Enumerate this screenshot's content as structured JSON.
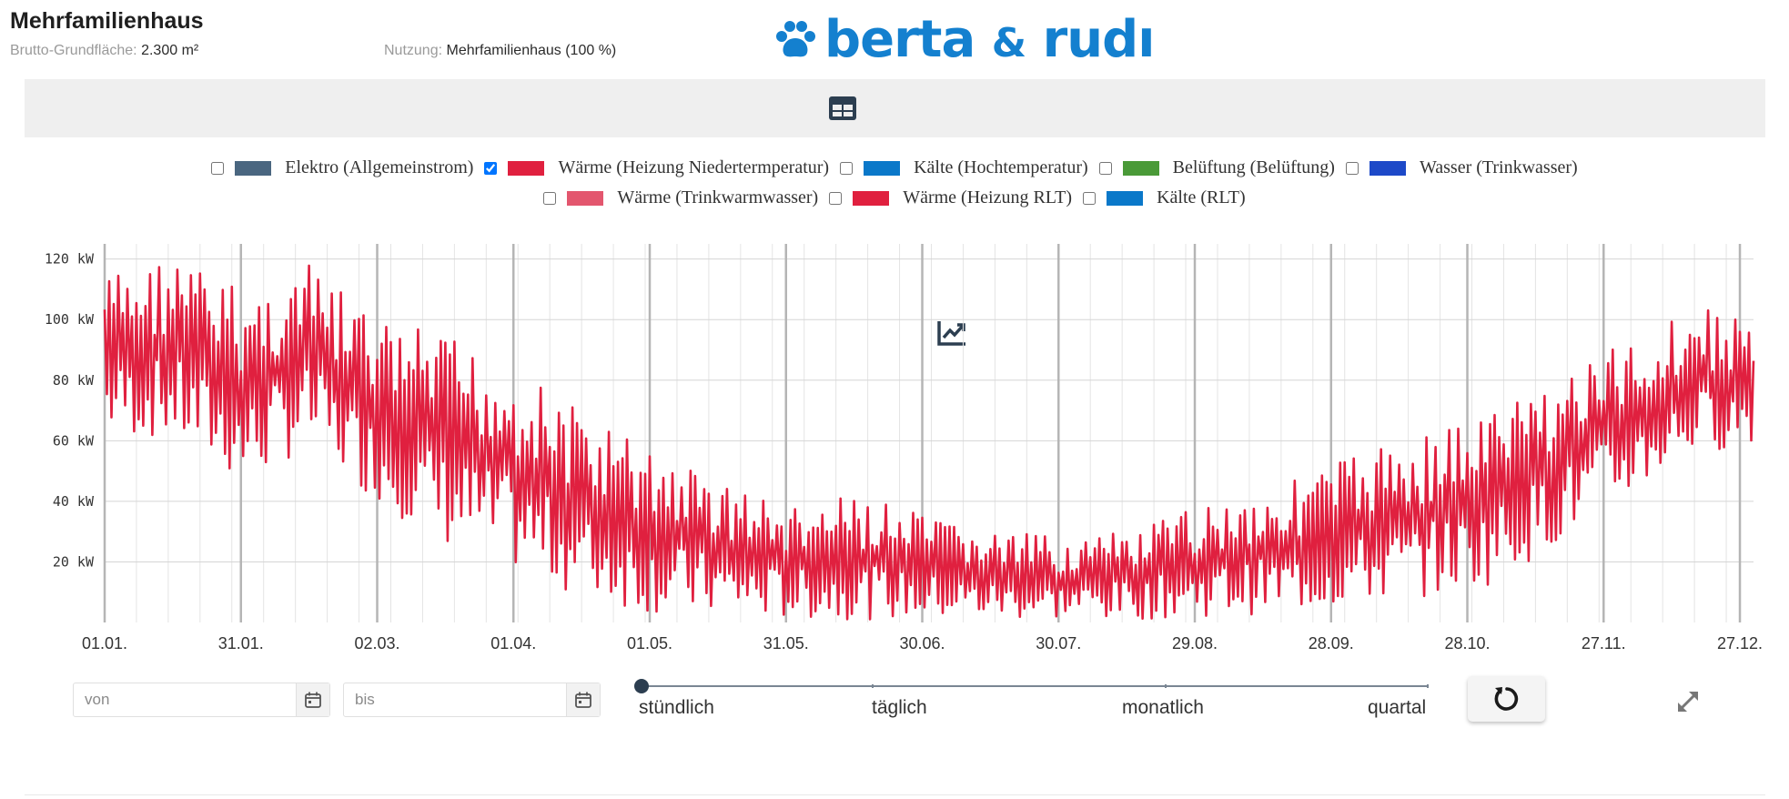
{
  "header": {
    "title": "Mehrfamilienhaus",
    "area_label": "Brutto-Grundfläche:",
    "area_value": "2.300 m²",
    "usage_label": "Nutzung:",
    "usage_value": "Mehrfamilienhaus (100 %)"
  },
  "logo": {
    "text_left": "berta",
    "amp": "&",
    "text_right": "rudı",
    "color": "#1480cf"
  },
  "toolbar": {
    "table_icon": "table-icon",
    "chart_icon": "chart-line-icon",
    "active_color": "#2c3e50"
  },
  "legend": {
    "row1": [
      {
        "label": "Elektro (Allgemeinstrom)",
        "color": "#4a6680",
        "checked": false
      },
      {
        "label": "Wärme (Heizung Niedertermperatur)",
        "color": "#e0203f",
        "checked": true
      },
      {
        "label": "Kälte (Hochtemperatur)",
        "color": "#0a78c9",
        "checked": false
      },
      {
        "label": "Belüftung (Belüftung)",
        "color": "#4a9a38",
        "checked": false
      },
      {
        "label": "Wasser (Trinkwasser)",
        "color": "#1d49c8",
        "checked": false
      }
    ],
    "row2": [
      {
        "label": "Wärme (Trinkwarmwasser)",
        "color": "#e3566e",
        "checked": false
      },
      {
        "label": "Wärme (Heizung RLT)",
        "color": "#e0203f",
        "checked": false
      },
      {
        "label": "Kälte (RLT)",
        "color": "#0a78c9",
        "checked": false
      }
    ]
  },
  "chart_data": {
    "type": "line",
    "series": [
      {
        "name": "Wärme (Heizung Niedertermperatur)",
        "color": "#e0203f",
        "x_unit": "day_of_year",
        "monthly_envelope": [
          [
            0,
            115,
            62
          ],
          [
            15,
            122,
            60
          ],
          [
            31,
            110,
            45
          ],
          [
            45,
            118,
            58
          ],
          [
            60,
            100,
            40
          ],
          [
            75,
            95,
            25
          ],
          [
            90,
            85,
            18
          ],
          [
            105,
            70,
            8
          ],
          [
            120,
            58,
            3
          ],
          [
            135,
            48,
            2
          ],
          [
            151,
            38,
            1
          ],
          [
            166,
            42,
            1
          ],
          [
            181,
            35,
            1
          ],
          [
            196,
            30,
            1
          ],
          [
            212,
            28,
            1
          ],
          [
            227,
            30,
            1
          ],
          [
            243,
            40,
            2
          ],
          [
            258,
            45,
            3
          ],
          [
            273,
            55,
            5
          ],
          [
            288,
            62,
            8
          ],
          [
            304,
            70,
            12
          ],
          [
            319,
            82,
            25
          ],
          [
            334,
            92,
            40
          ],
          [
            349,
            105,
            55
          ],
          [
            365,
            100,
            60
          ]
        ]
      }
    ],
    "y_ticks": [
      "20 kW",
      "40 kW",
      "60 kW",
      "80 kW",
      "100 kW",
      "120 kW"
    ],
    "y_values": [
      20,
      40,
      60,
      80,
      100,
      120
    ],
    "ylim": [
      0,
      125
    ],
    "x_ticks": [
      "01.01.",
      "31.01.",
      "02.03.",
      "01.04.",
      "01.05.",
      "31.05.",
      "30.06.",
      "30.07.",
      "29.08.",
      "28.09.",
      "28.10.",
      "27.11.",
      "27.12."
    ],
    "x_tick_days": [
      0,
      30,
      60,
      90,
      120,
      150,
      180,
      210,
      240,
      270,
      300,
      330,
      360
    ],
    "xlim": [
      0,
      363
    ],
    "grid": true
  },
  "controls": {
    "von_placeholder": "von",
    "bis_placeholder": "bis",
    "resolution_labels": [
      "stündlich",
      "täglich",
      "monatlich",
      "quartal"
    ],
    "resolution_selected": "stündlich"
  }
}
